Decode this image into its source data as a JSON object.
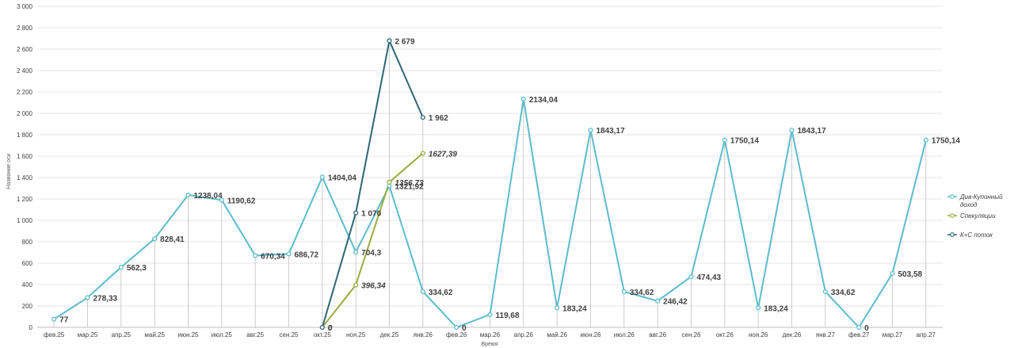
{
  "chart_data": {
    "type": "line",
    "xlabel": "Время",
    "ylabel": "Название оси",
    "ylim": [
      0,
      3000
    ],
    "yticks": [
      "0",
      "200",
      "400",
      "600",
      "800",
      "1 000",
      "1 200",
      "1 400",
      "1 600",
      "1 800",
      "2 000",
      "2 200",
      "2 400",
      "2 600",
      "2 800",
      "3 000"
    ],
    "grid": true,
    "legend_position": "right",
    "categories": [
      "фев.25",
      "мар.25",
      "апр.25",
      "май.25",
      "июн.25",
      "июл.25",
      "авг.25",
      "сен.25",
      "окт.25",
      "ноя.25",
      "дек.25",
      "янв.26",
      "фев.26",
      "мар.26",
      "апр.26",
      "май.26",
      "июн.26",
      "июл.26",
      "авг.26",
      "сен.26",
      "окт.26",
      "ноя.26",
      "дек.26",
      "янв.27",
      "фев.27",
      "мар.27",
      "апр.27"
    ],
    "series": [
      {
        "name": "Див-Купонный доход",
        "color": "#5bbccc",
        "italic_labels": false,
        "values": [
          77,
          278.33,
          562.3,
          828.41,
          1238.04,
          1190.62,
          670.34,
          686.72,
          1404.04,
          704.3,
          1321.92,
          334.62,
          0,
          119.68,
          2134.04,
          183.24,
          1843.17,
          334.62,
          246.42,
          474.43,
          1750.14,
          183.24,
          1843.17,
          334.62,
          0,
          503.58,
          1750.14
        ],
        "labels": [
          "77",
          "278,33",
          "562,3",
          "828,41",
          "1238,04",
          "1190,62",
          "670,34",
          "686,72",
          "1404,04",
          "704,3",
          "1321,92",
          "334,62",
          "0",
          "119,68",
          "2134,04",
          "183,24",
          "1843,17",
          "334,62",
          "246,42",
          "474,43",
          "1750,14",
          "183,24",
          "1843,17",
          "334,62",
          "0",
          "503,58",
          "1750,14"
        ]
      },
      {
        "name": "Спекуляции",
        "color": "#9bab3f",
        "italic_labels": true,
        "values": [
          null,
          null,
          null,
          null,
          null,
          null,
          null,
          null,
          0,
          396.34,
          1356.73,
          1627.39,
          null,
          null,
          null,
          null,
          null,
          null,
          null,
          null,
          null,
          null,
          null,
          null,
          null,
          null,
          null
        ],
        "labels": [
          null,
          null,
          null,
          null,
          null,
          null,
          null,
          null,
          "0",
          "396,34",
          "1356,73",
          "1627,39",
          null,
          null,
          null,
          null,
          null,
          null,
          null,
          null,
          null,
          null,
          null,
          null,
          null,
          null,
          null
        ]
      },
      {
        "name": "К+С поток",
        "color": "#2e6676",
        "italic_labels": false,
        "values": [
          null,
          null,
          null,
          null,
          null,
          null,
          null,
          null,
          0,
          1070,
          2679,
          1962,
          null,
          null,
          null,
          null,
          null,
          null,
          null,
          null,
          null,
          null,
          null,
          null,
          null,
          null,
          null
        ],
        "labels": [
          null,
          null,
          null,
          null,
          null,
          null,
          null,
          null,
          "0",
          "1 070",
          "2 679",
          "1 962",
          null,
          null,
          null,
          null,
          null,
          null,
          null,
          null,
          null,
          null,
          null,
          null,
          null,
          null,
          null
        ]
      }
    ]
  },
  "legend": {
    "items": [
      {
        "name": "Див-Купонный доход",
        "color": "#5bbccc"
      },
      {
        "name": "Спекуляции",
        "color": "#9bab3f"
      },
      {
        "name": "К+С поток",
        "color": "#2e6676"
      }
    ]
  }
}
